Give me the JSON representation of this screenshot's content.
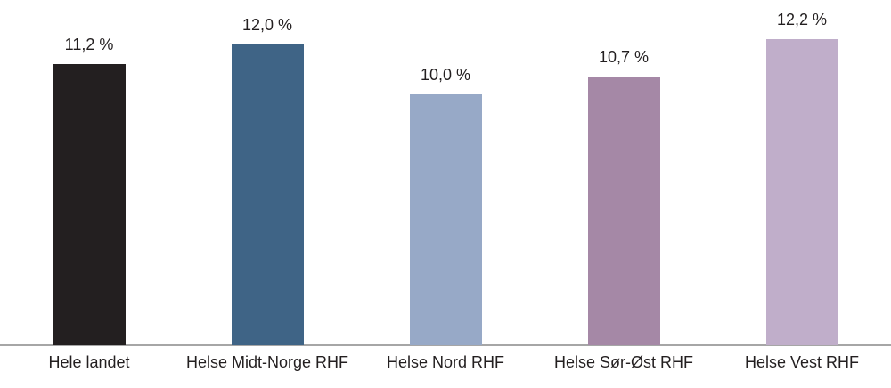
{
  "chart_data": {
    "type": "bar",
    "categories": [
      "Hele landet",
      "Helse Midt-Norge RHF",
      "Helse Nord RHF",
      "Helse Sør-Øst RHF",
      "Helse Vest RHF"
    ],
    "values": [
      11.2,
      12.0,
      10.0,
      10.7,
      12.2
    ],
    "value_labels": [
      "11,2 %",
      "12,0 %",
      "10,0 %",
      "10,7 %",
      "12,2 %"
    ],
    "bar_colors": [
      "#231f20",
      "#3f6486",
      "#97a9c7",
      "#a588a6",
      "#c0aeca"
    ],
    "title": "",
    "xlabel": "",
    "ylabel": "",
    "ylim": [
      0,
      13.8
    ],
    "grid": false,
    "legend": "none",
    "axis_line_color": "#a6a6a6",
    "text_color": "#231f20",
    "background": "#ffffff"
  }
}
